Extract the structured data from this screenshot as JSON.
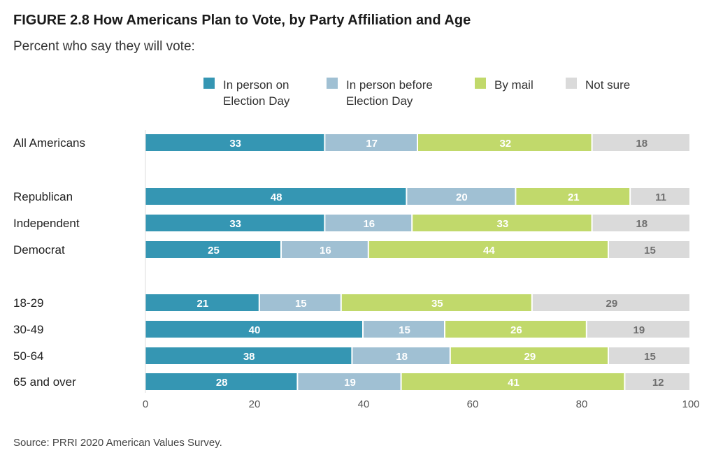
{
  "chart_data": {
    "type": "bar",
    "orientation": "horizontal",
    "stacked": true,
    "title": "FIGURE 2.8 How Americans Plan to Vote, by Party Affiliation and Age",
    "subtitle": "Percent who say they will vote:",
    "source": "Source: PRRI 2020 American Values Survey.",
    "xlim": [
      0,
      100
    ],
    "x_ticks": [
      0,
      20,
      40,
      60,
      80,
      100
    ],
    "grid": false,
    "legend_position": "top",
    "categories": [
      "All Americans",
      "Republican",
      "Independent",
      "Democrat",
      "18-29",
      "30-49",
      "50-64",
      "65 and over"
    ],
    "groups": [
      [
        "All Americans"
      ],
      [
        "Republican",
        "Independent",
        "Democrat"
      ],
      [
        "18-29",
        "30-49",
        "50-64",
        "65 and over"
      ]
    ],
    "series": [
      {
        "name": "In person on Election Day",
        "legend_lines": [
          "In person on",
          "Election Day"
        ],
        "color": "#3596b3",
        "label_color": "#ffffff",
        "values": [
          33,
          48,
          33,
          25,
          21,
          40,
          38,
          28
        ]
      },
      {
        "name": "In person before Election Day",
        "legend_lines": [
          "In person before",
          "Election Day"
        ],
        "color": "#a0c0d3",
        "label_color": "#ffffff",
        "values": [
          17,
          20,
          16,
          16,
          15,
          15,
          18,
          19
        ]
      },
      {
        "name": "By mail",
        "legend_lines": [
          "By mail"
        ],
        "color": "#c1d96b",
        "label_color": "#ffffff",
        "values": [
          32,
          21,
          33,
          44,
          35,
          26,
          29,
          41
        ]
      },
      {
        "name": "Not sure",
        "legend_lines": [
          "Not sure"
        ],
        "color": "#dadada",
        "label_color": "#6f6f6f",
        "values": [
          18,
          11,
          18,
          15,
          29,
          19,
          15,
          12
        ]
      }
    ]
  }
}
